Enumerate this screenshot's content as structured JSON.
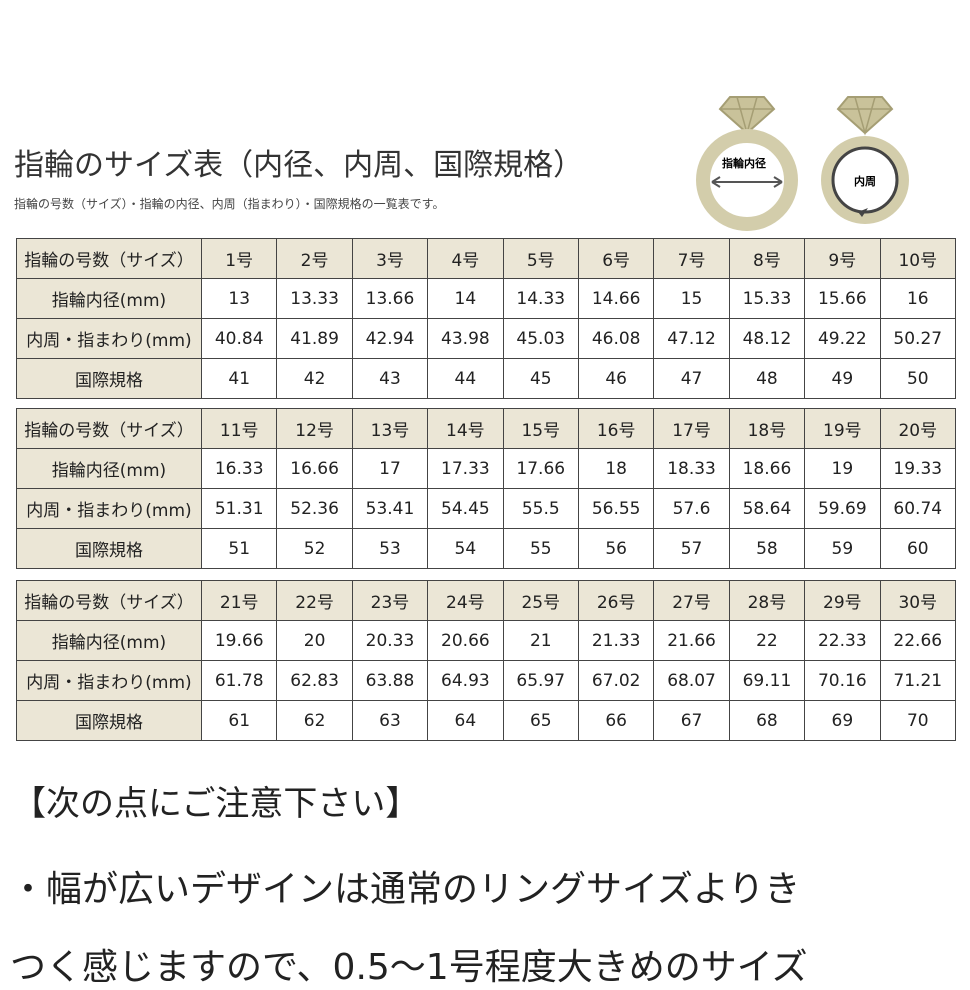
{
  "title": "指輪のサイズ表（内径、内周、国際規格）",
  "subtitle": "指輪の号数（サイズ）・指輪の内径、内周（指まわり）・国際規格の一覧表です。",
  "icons": {
    "inner_diameter": "指輪内径",
    "inner_circumference": "内周"
  },
  "tables": [
    {
      "rows": [
        [
          "指輪の号数（サイズ）",
          "1号",
          "2号",
          "3号",
          "4号",
          "5号",
          "6号",
          "7号",
          "8号",
          "9号",
          "10号"
        ],
        [
          "指輪内径(mm)",
          "13",
          "13.33",
          "13.66",
          "14",
          "14.33",
          "14.66",
          "15",
          "15.33",
          "15.66",
          "16"
        ],
        [
          "内周・指まわり(mm)",
          "40.84",
          "41.89",
          "42.94",
          "43.98",
          "45.03",
          "46.08",
          "47.12",
          "48.12",
          "49.22",
          "50.27"
        ],
        [
          "国際規格",
          "41",
          "42",
          "43",
          "44",
          "45",
          "46",
          "47",
          "48",
          "49",
          "50"
        ]
      ]
    },
    {
      "rows": [
        [
          "指輪の号数（サイズ）",
          "11号",
          "12号",
          "13号",
          "14号",
          "15号",
          "16号",
          "17号",
          "18号",
          "19号",
          "20号"
        ],
        [
          "指輪内径(mm)",
          "16.33",
          "16.66",
          "17",
          "17.33",
          "17.66",
          "18",
          "18.33",
          "18.66",
          "19",
          "19.33"
        ],
        [
          "内周・指まわり(mm)",
          "51.31",
          "52.36",
          "53.41",
          "54.45",
          "55.5",
          "56.55",
          "57.6",
          "58.64",
          "59.69",
          "60.74"
        ],
        [
          "国際規格",
          "51",
          "52",
          "53",
          "54",
          "55",
          "56",
          "57",
          "58",
          "59",
          "60"
        ]
      ]
    },
    {
      "rows": [
        [
          "指輪の号数（サイズ）",
          "21号",
          "22号",
          "23号",
          "24号",
          "25号",
          "26号",
          "27号",
          "28号",
          "29号",
          "30号"
        ],
        [
          "指輪内径(mm)",
          "19.66",
          "20",
          "20.33",
          "20.66",
          "21",
          "21.33",
          "21.66",
          "22",
          "22.33",
          "22.66"
        ],
        [
          "内周・指まわり(mm)",
          "61.78",
          "62.83",
          "63.88",
          "64.93",
          "65.97",
          "67.02",
          "68.07",
          "69.11",
          "70.16",
          "71.21"
        ],
        [
          "国際規格",
          "61",
          "62",
          "63",
          "64",
          "65",
          "66",
          "67",
          "68",
          "69",
          "70"
        ]
      ]
    }
  ],
  "notice": {
    "heading": "【次の点にご注意下さい】",
    "lines": [
      "・幅が広いデザインは通常のリングサイズよりき",
      "つく感じますので、0.5～1号程度大きめのサイズ"
    ]
  }
}
